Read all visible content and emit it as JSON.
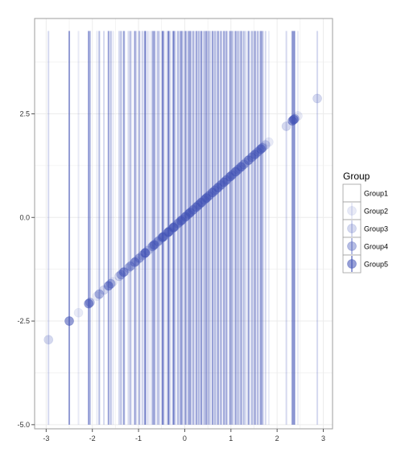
{
  "chart_data": {
    "type": "scatter",
    "title": "",
    "xlabel": "",
    "ylabel": "",
    "xlim": [
      -3.25,
      3.2
    ],
    "ylim": [
      -5.1,
      4.8
    ],
    "x_ticks": [
      -3,
      -2,
      -1,
      0,
      1,
      2,
      3
    ],
    "x_tick_labels": [
      "-3",
      "-2",
      "-1",
      "0",
      "1",
      "2",
      "3"
    ],
    "y_ticks": [
      -5.0,
      -2.5,
      0.0,
      2.5
    ],
    "y_tick_labels": [
      "-5.0",
      "-2.5",
      "0.0",
      "2.5"
    ],
    "grid": true,
    "vertical_lines": {
      "y_from": -5.0,
      "y_to": 4.5
    },
    "legend": {
      "title": "Group",
      "placement": "right",
      "entries": [
        "Group1",
        "Group2",
        "Group3",
        "Group4",
        "Group5"
      ]
    },
    "colors": {
      "point": "#3f51b5",
      "panel_border": "#9e9e9e",
      "grid": "#ececec",
      "legend_border": "#9e9e9e"
    },
    "series": [
      {
        "name": "Group1",
        "alpha": 0.0,
        "x": [
          -1.2,
          -0.5,
          0.3,
          1.0
        ]
      },
      {
        "name": "Group2",
        "alpha": 0.12,
        "x": [
          -2.3,
          -1.9,
          -1.55,
          -1.3,
          -1.15,
          -1.0,
          -0.9,
          -0.75,
          -0.62,
          -0.5,
          -0.4,
          -0.3,
          -0.2,
          -0.1,
          0.05,
          0.15,
          0.28,
          0.38,
          0.5,
          0.62,
          0.75,
          0.88,
          1.0,
          1.12,
          1.25,
          1.4,
          1.55,
          1.7,
          1.82,
          2.45
        ]
      },
      {
        "name": "Group3",
        "alpha": 0.22,
        "x": [
          -2.95,
          -1.75,
          -1.42,
          -1.22,
          -1.05,
          -0.92,
          -0.8,
          -0.68,
          -0.55,
          -0.45,
          -0.33,
          -0.22,
          -0.12,
          0.0,
          0.1,
          0.2,
          0.33,
          0.45,
          0.55,
          0.68,
          0.8,
          0.92,
          1.05,
          1.18,
          1.32,
          1.48,
          1.62,
          1.75,
          2.2,
          2.87
        ]
      },
      {
        "name": "Group4",
        "alpha": 0.38,
        "x": [
          -2.05,
          -1.85,
          -1.6,
          -1.38,
          -1.18,
          -0.98,
          -0.85,
          -0.7,
          -0.58,
          -0.47,
          -0.36,
          -0.25,
          -0.15,
          -0.05,
          0.08,
          0.18,
          0.3,
          0.42,
          0.52,
          0.65,
          0.78,
          0.9,
          1.02,
          1.15,
          1.28,
          1.45,
          1.58,
          1.68,
          2.38
        ]
      },
      {
        "name": "Group5",
        "alpha": 0.55,
        "x": [
          -2.5,
          -2.08,
          -1.65,
          -1.32,
          -1.08,
          -0.86,
          -0.66,
          -0.48,
          -0.35,
          -0.24,
          -0.08,
          0.02,
          0.12,
          0.25,
          0.36,
          0.47,
          0.6,
          0.72,
          0.85,
          0.98,
          1.1,
          1.22,
          1.38,
          1.52,
          1.65,
          2.33,
          2.36
        ]
      }
    ]
  }
}
